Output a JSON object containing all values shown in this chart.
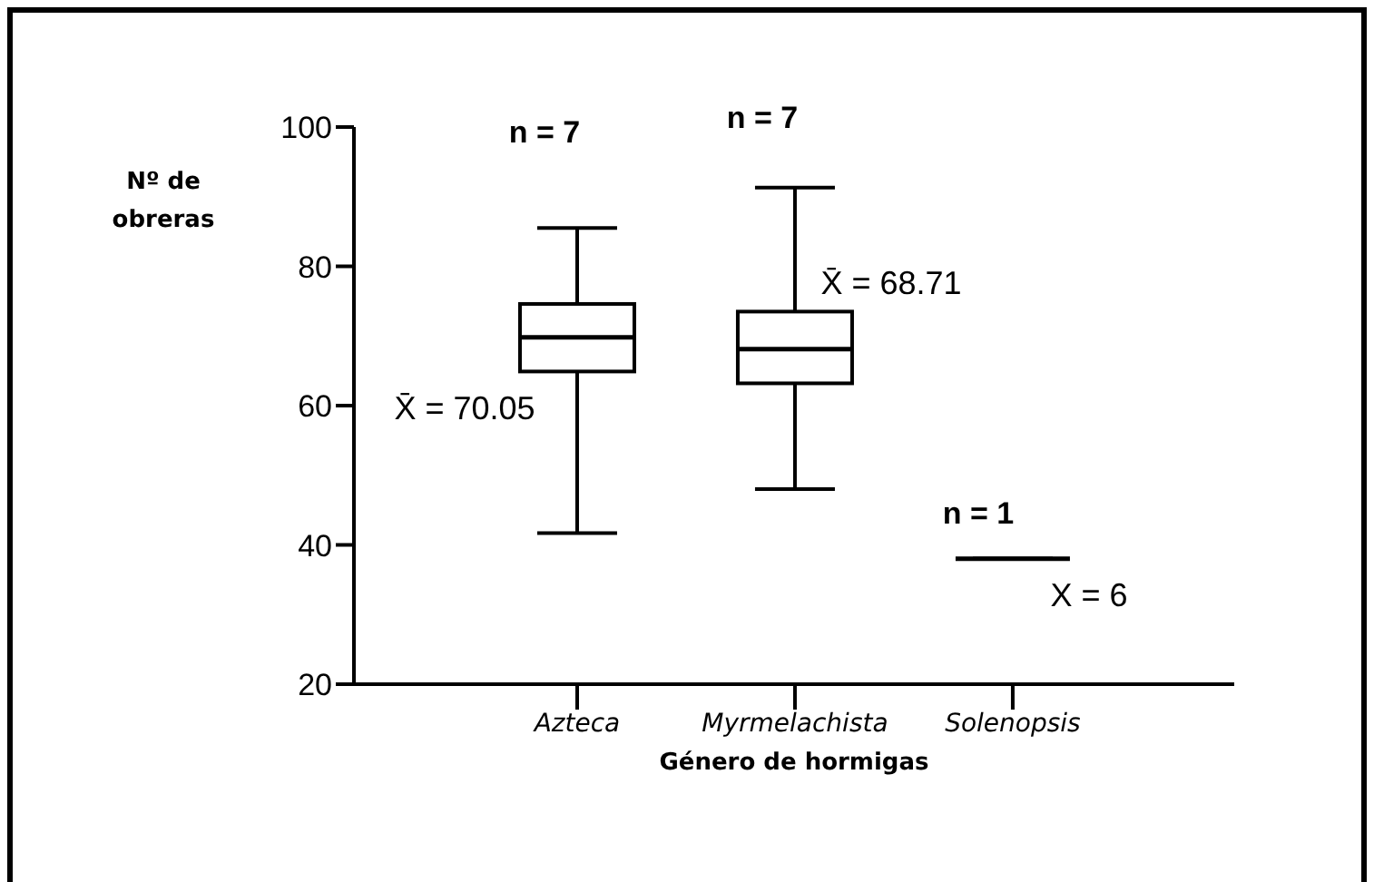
{
  "chart_data": {
    "type": "box",
    "xlabel": "Género de hormigas",
    "ylabel": "Nº de obreras",
    "categories": [
      "Azteca",
      "Myrmelachista",
      "Solenopsis"
    ],
    "boxes": [
      {
        "low": 41.7,
        "q1": 64.9,
        "median": 69.8,
        "q3": 74.6,
        "high": 85.5
      },
      {
        "low": 48,
        "q1": 63.2,
        "median": 68.1,
        "q3": 73.5,
        "high": 91.3
      },
      {
        "low": 38,
        "q1": 38,
        "median": 38,
        "q3": 38,
        "high": 38
      }
    ],
    "color": "#000000",
    "ylim": [
      20,
      100
    ],
    "yticks": [
      20,
      40,
      60,
      80,
      100
    ],
    "annotations": [
      "n = 7",
      "n = 7",
      "n = 1",
      "X̄ = 70.05",
      "X̄ = 68.71",
      "X = 6"
    ]
  }
}
